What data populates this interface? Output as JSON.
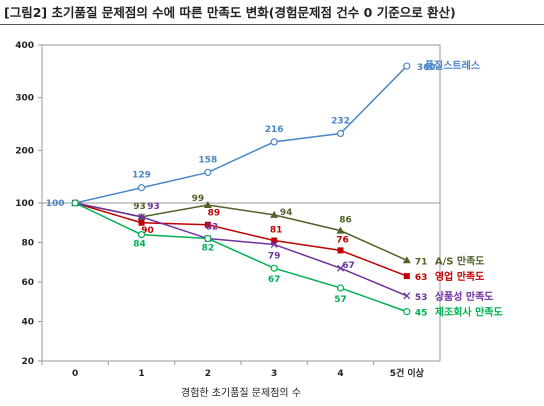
{
  "title": "[그림2] 초기품질 문제점의 수에 따른 만족도 변화(경험문제점 건수 0 기준으로 환산)",
  "chart_data": {
    "type": "line",
    "title": "[그림2] 초기품질 문제점의 수에 따른 만족도 변화(경험문제점 건수 0 기준으로 환산)",
    "xlabel": "경험한 초기품질 문제점의 수",
    "ylabel": "",
    "categories": [
      "0",
      "1",
      "2",
      "3",
      "4",
      "5건 이상"
    ],
    "ylim": [
      20,
      400
    ],
    "y_scale": "broken: 20–100 linear, 100–400 compressed",
    "yticks": [
      20,
      40,
      60,
      80,
      100,
      200,
      300,
      400
    ],
    "grid": "horizontal at 100",
    "legend": "none (series names at line ends)",
    "series": [
      {
        "name": "품질스트레스",
        "values": [
          100,
          129,
          158,
          216,
          232,
          360
        ],
        "color": "#4a86c8",
        "marker": "circle-open"
      },
      {
        "name": "A/S 만족도",
        "values": [
          100,
          93,
          99,
          94,
          86,
          71
        ],
        "color": "#4f6228",
        "marker": "triangle"
      },
      {
        "name": "영업 만족도",
        "values": [
          100,
          90,
          89,
          81,
          76,
          63
        ],
        "color": "#c00000",
        "marker": "square"
      },
      {
        "name": "상품성 만족도",
        "values": [
          100,
          93,
          82,
          79,
          67,
          53
        ],
        "color": "#7030a0",
        "marker": "x"
      },
      {
        "name": "제조회사 만족도",
        "values": [
          100,
          84,
          82,
          67,
          57,
          45
        ],
        "color": "#00b050",
        "marker": "circle-open"
      }
    ]
  }
}
